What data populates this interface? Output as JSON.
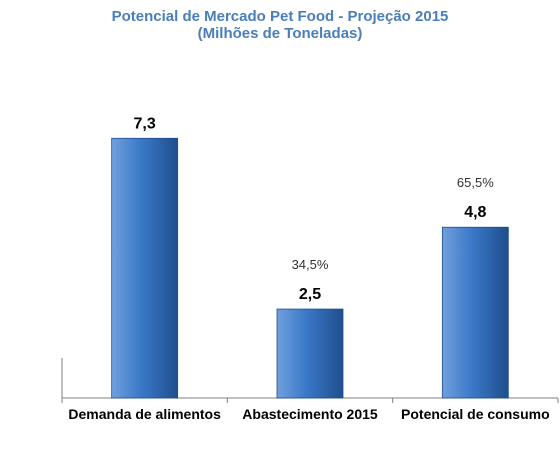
{
  "chart_data": {
    "type": "bar",
    "title": "Potencial de Mercado Pet Food - Projeção 2015",
    "subtitle": "(Milhões de Toneladas)",
    "categories": [
      "Demanda de alimentos",
      "Abastecimento 2015",
      "Potencial de consumo"
    ],
    "values": [
      7.3,
      2.5,
      4.8
    ],
    "value_labels": [
      "7,3",
      "2,5",
      "4,8"
    ],
    "percent_labels": [
      "",
      "34,5%",
      "65,5%"
    ],
    "xlabel": "",
    "ylabel": "",
    "ylim": [
      0,
      9.5
    ],
    "grid": false,
    "legend": "none",
    "colors": {
      "title": "#4A7EBB",
      "bar_light": "#6FA0DD",
      "bar_mid": "#3A78C8",
      "bar_dark": "#1F4E8C",
      "axis": "#7F7F7F"
    }
  }
}
